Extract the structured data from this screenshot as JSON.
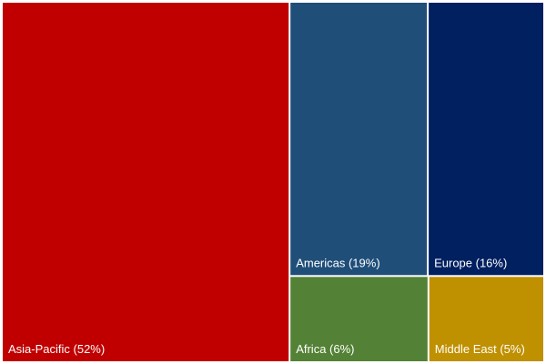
{
  "chart_data": {
    "type": "treemap",
    "title": "",
    "items": [
      {
        "name": "Asia-Pacific",
        "value": 52,
        "label": "Asia-Pacific (52%)",
        "color": "#C00000"
      },
      {
        "name": "Americas",
        "value": 19,
        "label": "Americas (19%)",
        "color": "#1F4E79"
      },
      {
        "name": "Europe",
        "value": 16,
        "label": "Europe (16%)",
        "color": "#002060"
      },
      {
        "name": "Africa",
        "value": 6,
        "label": "Africa (6%)",
        "color": "#538135"
      },
      {
        "name": "Middle East",
        "value": 5,
        "label": "Middle East (5%)",
        "color": "#BF9000"
      }
    ]
  }
}
